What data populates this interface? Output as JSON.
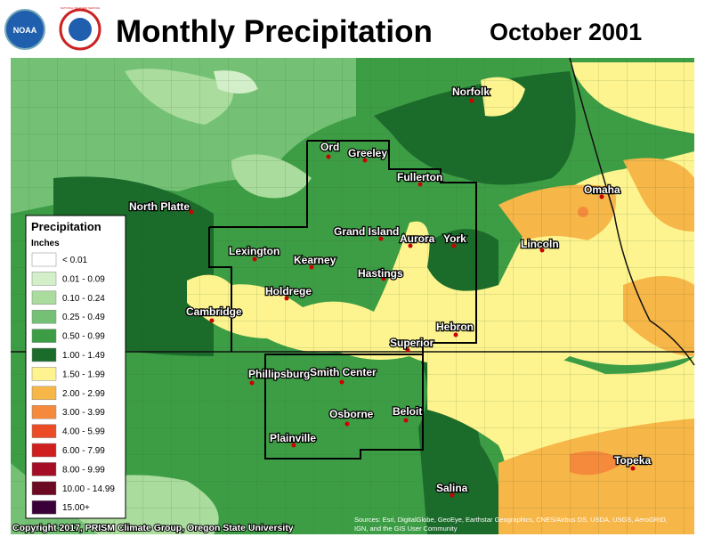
{
  "header": {
    "title": "Monthly Precipitation",
    "date": "October 2001",
    "logo_noaa": "NOAA",
    "logo_nws": "NATIONAL WEATHER SERVICE"
  },
  "cities": [
    "Norfolk",
    "Ord",
    "Greeley",
    "Fullerton",
    "North Platte",
    "Omaha",
    "Grand Island",
    "Aurora",
    "York",
    "Lincoln",
    "Lexington",
    "Kearney",
    "Hastings",
    "Holdrege",
    "Cambridge",
    "Hebron",
    "Superior",
    "Phillipsburg",
    "Smith Center",
    "Osborne",
    "Beloit",
    "Plainville",
    "Topeka",
    "Salina"
  ],
  "legend": {
    "title": "Precipitation",
    "units": "Inches",
    "items": [
      {
        "label": "< 0.01",
        "color": "#ffffff"
      },
      {
        "label": "0.01 - 0.09",
        "color": "#d3efc9"
      },
      {
        "label": "0.10 - 0.24",
        "color": "#a9dc9d"
      },
      {
        "label": "0.25 - 0.49",
        "color": "#74c175"
      },
      {
        "label": "0.50 - 0.99",
        "color": "#3d9d45"
      },
      {
        "label": "1.00 - 1.49",
        "color": "#1b6b2b"
      },
      {
        "label": "1.50 - 1.99",
        "color": "#fdf48f"
      },
      {
        "label": "2.00 - 2.99",
        "color": "#f7b648"
      },
      {
        "label": "3.00 - 3.99",
        "color": "#f58a3c"
      },
      {
        "label": "4.00 - 5.99",
        "color": "#eb4b25"
      },
      {
        "label": "6.00 - 7.99",
        "color": "#cf1f1e"
      },
      {
        "label": "8.00 - 9.99",
        "color": "#a50d26"
      },
      {
        "label": "10.00 - 14.99",
        "color": "#6b0a22"
      },
      {
        "label": "15.00+",
        "color": "#3a0038"
      }
    ]
  },
  "footer": {
    "copyright": "Copyright 2017, PRISM Climate Group, Oregon State University",
    "source_line1": "Sources: Esri, DigitalGlobe, GeoEye, Earthstar Geographics, CNES/Airbus DS, USDA, USGS, AeroGRID,",
    "source_line2": "IGN, and the GIS User Community"
  }
}
